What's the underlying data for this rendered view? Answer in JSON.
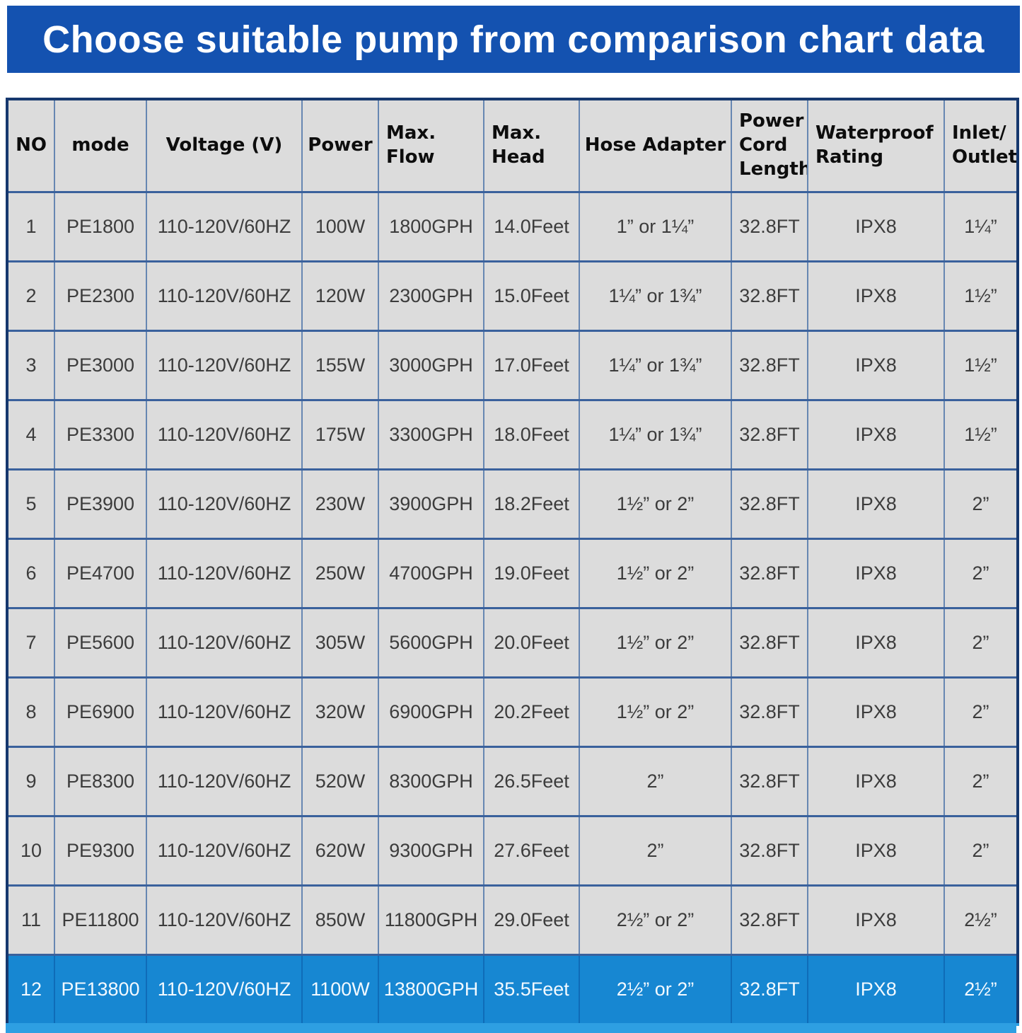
{
  "banner": {
    "title": "Choose suitable pump from comparison chart data"
  },
  "colors": {
    "banner_bg": "#1452b0",
    "cell_bg": "#dcdcdc",
    "highlight_row_bg": "#1787d2",
    "bottom_strip": "#2e9fe2",
    "grid_border": "#3a619c",
    "outer_border": "#16386e"
  },
  "table": {
    "headers_display": [
      "NO",
      "mode",
      "Voltage (V)",
      "Power",
      "Max.\nFlow",
      "Max.\nHead",
      "Hose Adapter",
      "Power\nCord\nLength",
      "Waterproof\nRating",
      "Inlet/\nOutlet"
    ]
  },
  "chart_data": {
    "type": "table",
    "title": "Choose suitable pump from comparison chart data",
    "columns": [
      "NO",
      "mode",
      "Voltage (V)",
      "Power",
      "Max. Flow",
      "Max. Head",
      "Hose Adapter",
      "Power Cord Length",
      "Waterproof Rating",
      "Inlet/Outlet"
    ],
    "rows": [
      [
        "1",
        "PE1800",
        "110-120V/60HZ",
        "100W",
        "1800GPH",
        "14.0Feet",
        "1” or 1¼”",
        "32.8FT",
        "IPX8",
        "1¼”"
      ],
      [
        "2",
        "PE2300",
        "110-120V/60HZ",
        "120W",
        "2300GPH",
        "15.0Feet",
        "1¼” or 1¾”",
        "32.8FT",
        "IPX8",
        "1½”"
      ],
      [
        "3",
        "PE3000",
        "110-120V/60HZ",
        "155W",
        "3000GPH",
        "17.0Feet",
        "1¼” or 1¾”",
        "32.8FT",
        "IPX8",
        "1½”"
      ],
      [
        "4",
        "PE3300",
        "110-120V/60HZ",
        "175W",
        "3300GPH",
        "18.0Feet",
        "1¼” or 1¾”",
        "32.8FT",
        "IPX8",
        "1½”"
      ],
      [
        "5",
        "PE3900",
        "110-120V/60HZ",
        "230W",
        "3900GPH",
        "18.2Feet",
        "1½” or 2”",
        "32.8FT",
        "IPX8",
        "2”"
      ],
      [
        "6",
        "PE4700",
        "110-120V/60HZ",
        "250W",
        "4700GPH",
        "19.0Feet",
        "1½” or 2”",
        "32.8FT",
        "IPX8",
        "2”"
      ],
      [
        "7",
        "PE5600",
        "110-120V/60HZ",
        "305W",
        "5600GPH",
        "20.0Feet",
        "1½” or 2”",
        "32.8FT",
        "IPX8",
        "2”"
      ],
      [
        "8",
        "PE6900",
        "110-120V/60HZ",
        "320W",
        "6900GPH",
        "20.2Feet",
        "1½” or 2”",
        "32.8FT",
        "IPX8",
        "2”"
      ],
      [
        "9",
        "PE8300",
        "110-120V/60HZ",
        "520W",
        "8300GPH",
        "26.5Feet",
        "2”",
        "32.8FT",
        "IPX8",
        "2”"
      ],
      [
        "10",
        "PE9300",
        "110-120V/60HZ",
        "620W",
        "9300GPH",
        "27.6Feet",
        "2”",
        "32.8FT",
        "IPX8",
        "2”"
      ],
      [
        "11",
        "PE11800",
        "110-120V/60HZ",
        "850W",
        "11800GPH",
        "29.0Feet",
        "2½” or 2”",
        "32.8FT",
        "IPX8",
        "2½”"
      ],
      [
        "12",
        "PE13800",
        "110-120V/60HZ",
        "1100W",
        "13800GPH",
        "35.5Feet",
        "2½” or 2”",
        "32.8FT",
        "IPX8",
        "2½”"
      ]
    ],
    "highlighted_row_index": 11
  }
}
